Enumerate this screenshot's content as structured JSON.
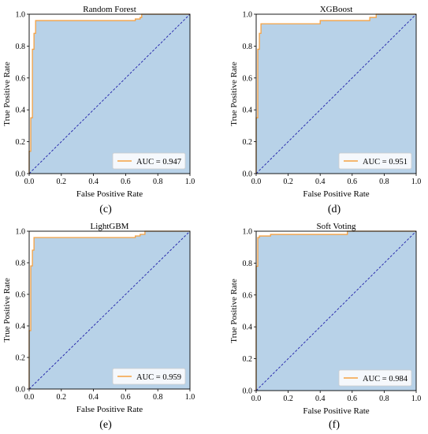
{
  "chart_data": [
    {
      "type": "line",
      "title": "Random Forest",
      "panel_label": "(c)",
      "xlabel": "False Positive Rate",
      "ylabel": "True Positive Rate",
      "xlim": [
        0,
        1
      ],
      "ylim": [
        0,
        1
      ],
      "xticks": [
        "0.0",
        "0.2",
        "0.4",
        "0.6",
        "0.8",
        "1.0"
      ],
      "yticks": [
        "0.0",
        "0.2",
        "0.4",
        "0.6",
        "0.8",
        "1.0"
      ],
      "legend_placement": "lower-right",
      "series": [
        {
          "name": "AUC = 0.947",
          "color": "#f5a142",
          "fill": "#b8d2e8",
          "x": [
            0.0,
            0.0,
            0.01,
            0.01,
            0.02,
            0.02,
            0.03,
            0.03,
            0.04,
            0.04,
            0.66,
            0.66,
            0.69,
            0.69,
            0.7,
            0.7,
            1.0
          ],
          "y": [
            0.0,
            0.14,
            0.14,
            0.35,
            0.35,
            0.78,
            0.78,
            0.88,
            0.88,
            0.96,
            0.96,
            0.97,
            0.97,
            0.98,
            0.98,
            1.0,
            1.0
          ]
        }
      ]
    },
    {
      "type": "line",
      "title": "XGBoost",
      "panel_label": "(d)",
      "xlabel": "False Positive Rate",
      "ylabel": "True Positive Rate",
      "xlim": [
        0,
        1
      ],
      "ylim": [
        0,
        1
      ],
      "xticks": [
        "0.0",
        "0.2",
        "0.4",
        "0.6",
        "0.8",
        "1.0"
      ],
      "yticks": [
        "0.0",
        "0.2",
        "0.4",
        "0.6",
        "0.8",
        "1.0"
      ],
      "legend_placement": "lower-right",
      "series": [
        {
          "name": "AUC = 0.951",
          "color": "#f5a142",
          "fill": "#b8d2e8",
          "x": [
            0.0,
            0.0,
            0.01,
            0.01,
            0.02,
            0.02,
            0.03,
            0.03,
            0.4,
            0.4,
            0.71,
            0.71,
            0.75,
            0.75,
            1.0
          ],
          "y": [
            0.0,
            0.35,
            0.35,
            0.78,
            0.78,
            0.88,
            0.88,
            0.94,
            0.94,
            0.96,
            0.96,
            0.98,
            0.98,
            1.0,
            1.0
          ]
        }
      ]
    },
    {
      "type": "line",
      "title": "LightGBM",
      "panel_label": "(e)",
      "xlabel": "False Positive Rate",
      "ylabel": "True Positive Rate",
      "xlim": [
        0,
        1
      ],
      "ylim": [
        0,
        1
      ],
      "xticks": [
        "0.0",
        "0.2",
        "0.4",
        "0.6",
        "0.8",
        "1.0"
      ],
      "yticks": [
        "0.0",
        "0.2",
        "0.4",
        "0.6",
        "0.8",
        "1.0"
      ],
      "legend_placement": "lower-right",
      "series": [
        {
          "name": "AUC = 0.959",
          "color": "#f5a142",
          "fill": "#b8d2e8",
          "x": [
            0.0,
            0.0,
            0.01,
            0.01,
            0.02,
            0.02,
            0.03,
            0.03,
            0.66,
            0.66,
            0.69,
            0.69,
            0.72,
            0.72,
            1.0
          ],
          "y": [
            0.0,
            0.37,
            0.37,
            0.78,
            0.78,
            0.88,
            0.88,
            0.96,
            0.96,
            0.97,
            0.97,
            0.98,
            0.98,
            1.0,
            1.0
          ]
        }
      ]
    },
    {
      "type": "line",
      "title": "Soft Voting",
      "panel_label": "(f)",
      "xlabel": "False Positive Rate",
      "ylabel": "True Positive Rate",
      "xlim": [
        0,
        1
      ],
      "ylim": [
        0,
        1
      ],
      "xticks": [
        "0.0",
        "0.2",
        "0.4",
        "0.6",
        "0.8",
        "1.0"
      ],
      "yticks": [
        "0.0",
        "0.2",
        "0.4",
        "0.6",
        "0.8",
        "1.0"
      ],
      "legend_placement": "lower-right",
      "series": [
        {
          "name": "AUC = 0.984",
          "color": "#f5a142",
          "fill": "#b8d2e8",
          "x": [
            0.0,
            0.0,
            0.01,
            0.01,
            0.02,
            0.02,
            0.09,
            0.09,
            0.57,
            0.57,
            1.0
          ],
          "y": [
            0.0,
            0.78,
            0.78,
            0.96,
            0.96,
            0.97,
            0.97,
            0.98,
            0.98,
            1.0,
            1.0
          ]
        }
      ]
    }
  ]
}
